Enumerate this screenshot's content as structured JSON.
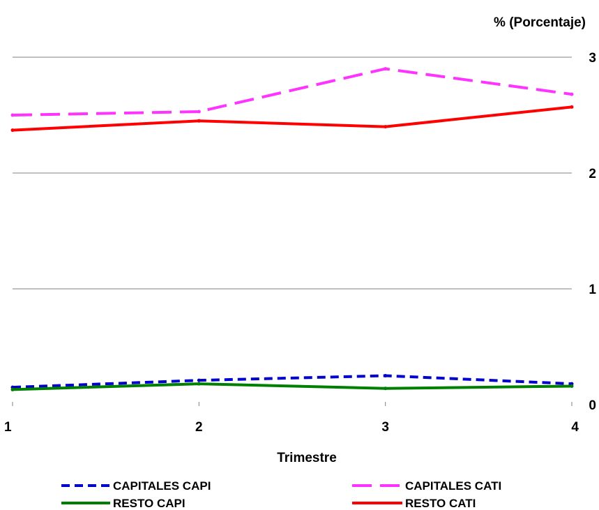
{
  "chart_data": {
    "type": "line",
    "title": "",
    "xlabel": "Trimestre",
    "ylabel": "% (Porcentaje)",
    "x": [
      1,
      2,
      3,
      4
    ],
    "ylim": [
      0,
      3
    ],
    "yticks": [
      0,
      1,
      2,
      3
    ],
    "grid": true,
    "legend_position": "bottom",
    "series": [
      {
        "name": "CAPITALES CAPI",
        "values": [
          0.15,
          0.21,
          0.25,
          0.18
        ],
        "color": "#0000cc",
        "dash": "short-dash"
      },
      {
        "name": "CAPITALES CATI",
        "values": [
          2.5,
          2.53,
          2.9,
          2.68
        ],
        "color": "#ff33ff",
        "dash": "long-dash"
      },
      {
        "name": "RESTO CAPI",
        "values": [
          0.13,
          0.18,
          0.14,
          0.16
        ],
        "color": "#008000",
        "dash": "solid"
      },
      {
        "name": "RESTO CATI",
        "values": [
          2.37,
          2.45,
          2.4,
          2.57
        ],
        "color": "#ff0000",
        "dash": "solid"
      }
    ]
  }
}
